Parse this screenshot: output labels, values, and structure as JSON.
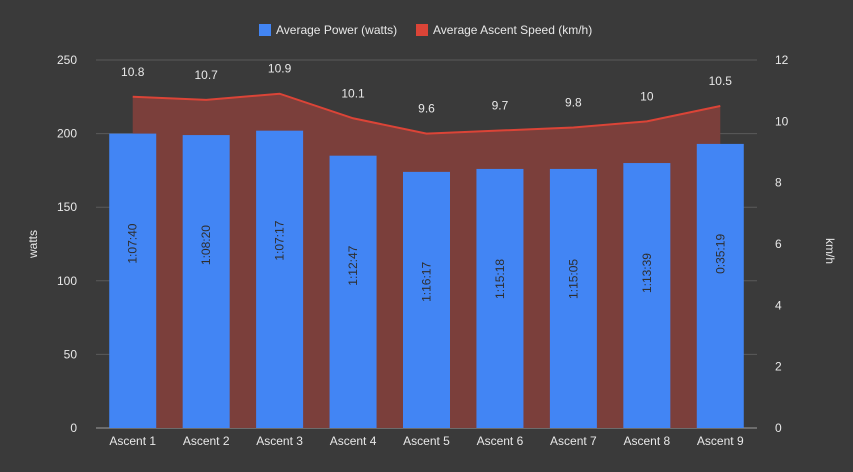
{
  "chart_data": {
    "type": "bar",
    "categories": [
      "Ascent 1",
      "Ascent 2",
      "Ascent 3",
      "Ascent 4",
      "Ascent 5",
      "Ascent 6",
      "Ascent 7",
      "Ascent 8",
      "Ascent 9"
    ],
    "series": [
      {
        "name": "Average Power (watts)",
        "type": "bar",
        "axis": "left",
        "color": "#4285f4",
        "values": [
          200,
          199,
          202,
          185,
          174,
          176,
          176,
          180,
          193
        ],
        "bar_labels": [
          "1:07:40",
          "1:08:20",
          "1:07:17",
          "1:12:47",
          "1:16:17",
          "1:15:18",
          "1:15:05",
          "1:13:39",
          "0:35:19"
        ]
      },
      {
        "name": "Average Ascent Speed (km/h)",
        "type": "area",
        "axis": "right",
        "color": "#db4437",
        "fill": "#7b3f3b",
        "values": [
          10.8,
          10.7,
          10.9,
          10.1,
          9.6,
          9.7,
          9.8,
          10,
          10.5
        ],
        "point_labels": [
          "10.8",
          "10.7",
          "10.9",
          "10.1",
          "9.6",
          "9.7",
          "9.8",
          "10",
          "10.5"
        ]
      }
    ],
    "y_left": {
      "label": "watts",
      "ticks": [
        "0",
        "50",
        "100",
        "150",
        "200",
        "250"
      ],
      "range": [
        0,
        250
      ]
    },
    "y_right": {
      "label": "km/h",
      "ticks": [
        "0",
        "2",
        "4",
        "6",
        "8",
        "10",
        "12"
      ],
      "range": [
        0,
        12
      ]
    },
    "legend_position": "top",
    "grid": true
  }
}
